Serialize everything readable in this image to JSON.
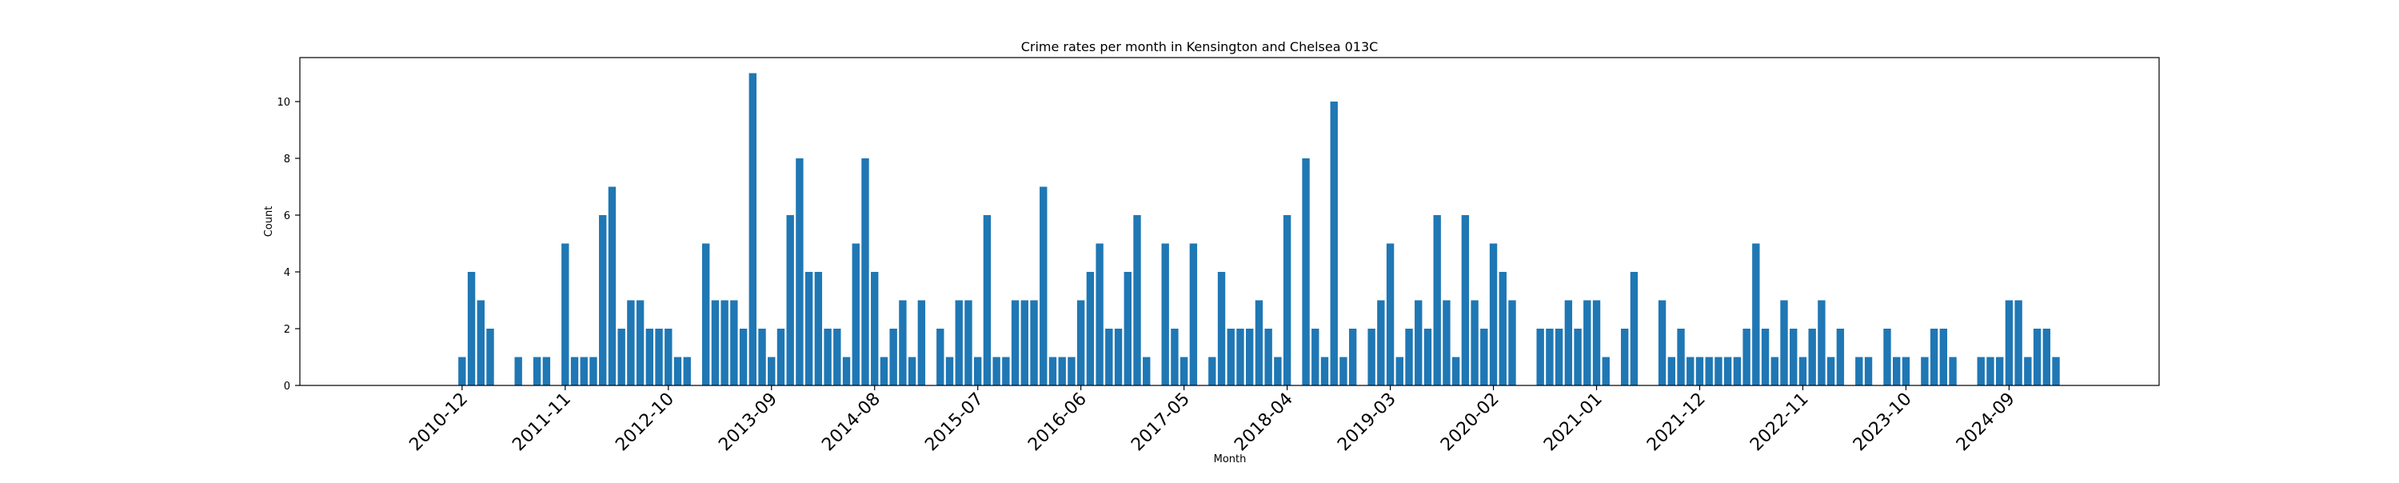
{
  "chart_data": {
    "type": "bar",
    "title": "Crime rates per month in Kensington and Chelsea 013C",
    "xlabel": "Month",
    "ylabel": "Count",
    "ylim": [
      0,
      11.55
    ],
    "yticks": [
      0,
      2,
      4,
      6,
      8,
      10
    ],
    "xtick_labels": [
      {
        "label": "2010-12",
        "month": "2010-12"
      },
      {
        "label": "2011-11",
        "month": "2011-11"
      },
      {
        "label": "2012-10",
        "month": "2012-10"
      },
      {
        "label": "2013-09",
        "month": "2013-09"
      },
      {
        "label": "2014-08",
        "month": "2014-08"
      },
      {
        "label": "2015-07",
        "month": "2015-07"
      },
      {
        "label": "2016-06",
        "month": "2016-06"
      },
      {
        "label": "2017-05",
        "month": "2017-05"
      },
      {
        "label": "2018-04",
        "month": "2018-04"
      },
      {
        "label": "2019-03",
        "month": "2019-03"
      },
      {
        "label": "2020-02",
        "month": "2020-02"
      },
      {
        "label": "2021-01",
        "month": "2021-01"
      },
      {
        "label": "2021-12",
        "month": "2021-12"
      },
      {
        "label": "2022-11",
        "month": "2022-11"
      },
      {
        "label": "2023-10",
        "month": "2023-10"
      },
      {
        "label": "2024-09",
        "month": "2024-09"
      }
    ],
    "x_start": "2010-12",
    "values": [
      1,
      4,
      3,
      2,
      0,
      0,
      1,
      0,
      1,
      1,
      0,
      5,
      1,
      1,
      1,
      6,
      7,
      2,
      3,
      3,
      2,
      2,
      2,
      1,
      1,
      0,
      5,
      3,
      3,
      3,
      2,
      11,
      2,
      1,
      2,
      6,
      8,
      4,
      4,
      2,
      2,
      1,
      5,
      8,
      4,
      1,
      2,
      3,
      1,
      3,
      0,
      2,
      1,
      3,
      3,
      1,
      6,
      1,
      1,
      3,
      3,
      3,
      7,
      1,
      1,
      1,
      3,
      4,
      5,
      2,
      2,
      4,
      6,
      1,
      0,
      5,
      2,
      1,
      5,
      0,
      1,
      4,
      2,
      2,
      2,
      3,
      2,
      1,
      6,
      0,
      8,
      2,
      1,
      10,
      1,
      2,
      0,
      2,
      3,
      5,
      1,
      2,
      3,
      2,
      6,
      3,
      1,
      6,
      3,
      2,
      5,
      4,
      3,
      0,
      0,
      2,
      2,
      2,
      3,
      2,
      3,
      3,
      1,
      0,
      2,
      4,
      0,
      0,
      3,
      1,
      2,
      1,
      1,
      1,
      1,
      1,
      1,
      2,
      5,
      2,
      1,
      3,
      2,
      1,
      2,
      3,
      1,
      2,
      0,
      1,
      1,
      0,
      2,
      1,
      1,
      0,
      1,
      2,
      2,
      1,
      0,
      0,
      1,
      1,
      1,
      3,
      3,
      1,
      2,
      2,
      1
    ],
    "bar_color": "#1f77b4",
    "grid": false,
    "legend": "none"
  }
}
